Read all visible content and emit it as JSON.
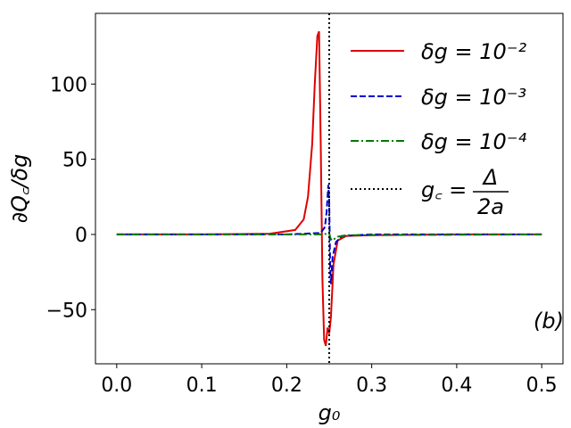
{
  "chart_data": {
    "type": "line",
    "title": "",
    "xlabel": "g₀",
    "ylabel": "∂Q꜀/δg",
    "xlim": [
      -0.025,
      0.525
    ],
    "ylim": [
      -86,
      147
    ],
    "x_ticks": [
      0.0,
      0.1,
      0.2,
      0.3,
      0.4,
      0.5
    ],
    "x_tick_labels": [
      "0.0",
      "0.1",
      "0.2",
      "0.3",
      "0.4",
      "0.5"
    ],
    "y_ticks": [
      -50,
      0,
      50,
      100
    ],
    "y_tick_labels": [
      "−50",
      "0",
      "50",
      "100"
    ],
    "grid": false,
    "legend_position": "top-right",
    "corner_label": "(b)",
    "series": [
      {
        "name": "δg = 10⁻²",
        "color": "#e00000",
        "style": "solid",
        "x": [
          0.0,
          0.1,
          0.18,
          0.21,
          0.22,
          0.225,
          0.23,
          0.233,
          0.236,
          0.238,
          0.24,
          0.242,
          0.244,
          0.246,
          0.248,
          0.25,
          0.252,
          0.255,
          0.26,
          0.27,
          0.3,
          0.4,
          0.5
        ],
        "y": [
          0,
          0,
          0.5,
          3,
          10,
          25,
          60,
          100,
          132,
          135,
          60,
          -30,
          -70,
          -74,
          -62,
          -66,
          -55,
          -20,
          -4,
          -1,
          -0.5,
          0,
          0
        ]
      },
      {
        "name": "δg = 10⁻³",
        "color": "#0000d0",
        "style": "dashed",
        "x": [
          0.0,
          0.2,
          0.24,
          0.245,
          0.247,
          0.249,
          0.25,
          0.251,
          0.252,
          0.254,
          0.258,
          0.265,
          0.3,
          0.5
        ],
        "y": [
          0,
          0,
          1,
          5,
          15,
          33,
          22,
          -20,
          -33,
          -15,
          -5,
          -1,
          0,
          0
        ]
      },
      {
        "name": "δg = 10⁻⁴",
        "color": "#007a00",
        "style": "dashdot",
        "x": [
          0.0,
          0.24,
          0.248,
          0.25,
          0.251,
          0.253,
          0.256,
          0.26,
          0.27,
          0.5
        ],
        "y": [
          0,
          0,
          0.5,
          1,
          -2,
          -4,
          -3,
          -1.5,
          -0.5,
          0
        ]
      }
    ],
    "vline": {
      "x": 0.25,
      "color": "#000000",
      "style": "dotted",
      "name_lhs": "g꜀ =",
      "name_num": "Δ",
      "name_den": "2a"
    }
  }
}
